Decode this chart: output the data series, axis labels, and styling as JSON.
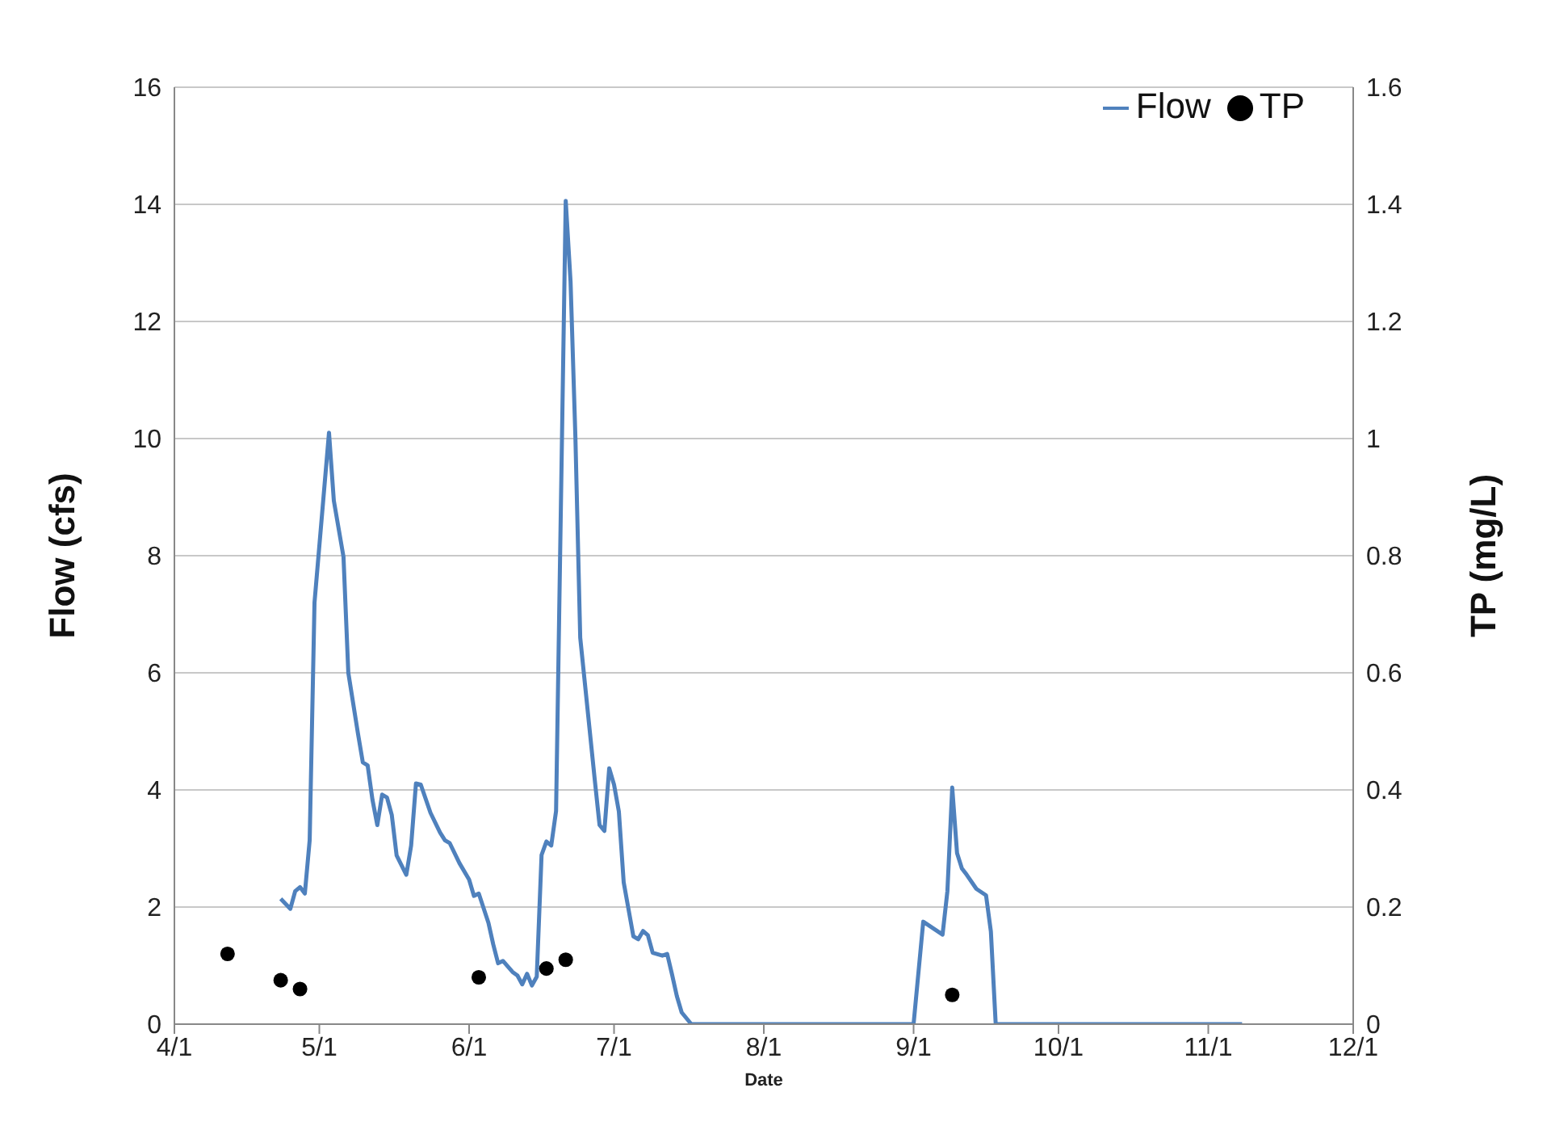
{
  "chart_data": {
    "type": "line",
    "xlabel": "Date",
    "ylabel": "Flow (cfs)",
    "y2label": "TP (mg/L)",
    "xlim": [
      "--04-01",
      "--12-01"
    ],
    "xticks": [
      {
        "value": "--04-01",
        "label": "4/1"
      },
      {
        "value": "--05-01",
        "label": "5/1"
      },
      {
        "value": "--06-01",
        "label": "6/1"
      },
      {
        "value": "--07-01",
        "label": "7/1"
      },
      {
        "value": "--08-01",
        "label": "8/1"
      },
      {
        "value": "--09-01",
        "label": "9/1"
      },
      {
        "value": "--10-01",
        "label": "10/1"
      },
      {
        "value": "--11-01",
        "label": "11/1"
      },
      {
        "value": "--12-01",
        "label": "12/1"
      }
    ],
    "ylim": [
      0,
      16
    ],
    "yticks": [
      0,
      2,
      4,
      6,
      8,
      10,
      12,
      14,
      16
    ],
    "y2lim": [
      0,
      1.6
    ],
    "y2ticks": [
      0,
      0.2,
      0.4,
      0.6,
      0.8,
      1,
      1.2,
      1.4,
      1.6
    ],
    "grid": "y",
    "legend": "top right",
    "series": [
      {
        "name": "Flow",
        "color": "#4f81bd",
        "x": [
          "--04-23",
          "--04-25",
          "--04-26",
          "--04-27",
          "--04-28",
          "--04-29",
          "--04-30",
          "--05-03",
          "--05-04",
          "--05-06",
          "--05-07",
          "--05-09",
          "--05-10",
          "--05-11",
          "--05-12",
          "--05-13",
          "--05-14",
          "--05-15",
          "--05-16",
          "--05-17",
          "--05-19",
          "--05-20",
          "--05-21",
          "--05-22",
          "--05-24",
          "--05-26",
          "--05-27",
          "--05-28",
          "--05-30",
          "--06-01",
          "--06-02",
          "--06-03",
          "--06-05",
          "--06-06",
          "--06-07",
          "--06-08",
          "--06-10",
          "--06-11",
          "--06-12",
          "--06-13",
          "--06-14",
          "--06-15",
          "--06-16",
          "--06-17",
          "--06-18",
          "--06-19",
          "--06-21",
          "--06-22",
          "--06-23",
          "--06-24",
          "--06-27",
          "--06-28",
          "--06-29",
          "--06-30",
          "--07-01",
          "--07-02",
          "--07-03",
          "--07-04",
          "--07-05",
          "--07-06",
          "--07-07",
          "--07-08",
          "--07-09",
          "--07-11",
          "--07-12",
          "--07-13",
          "--07-14",
          "--07-15",
          "--07-17",
          "--08-31",
          "--09-01",
          "--09-03",
          "--09-07",
          "--09-08",
          "--09-09",
          "--09-10",
          "--09-11",
          "--09-12",
          "--09-14",
          "--09-16",
          "--09-17",
          "--09-18",
          "--11-08"
        ],
        "values": [
          2.14,
          1.97,
          2.27,
          2.34,
          2.23,
          3.14,
          7.2,
          10.1,
          8.94,
          7.98,
          6.0,
          4.96,
          4.47,
          4.42,
          3.83,
          3.4,
          3.92,
          3.87,
          3.57,
          2.88,
          2.55,
          3.05,
          4.11,
          4.09,
          3.61,
          3.27,
          3.14,
          3.09,
          2.75,
          2.47,
          2.19,
          2.23,
          1.73,
          1.36,
          1.04,
          1.08,
          0.89,
          0.83,
          0.68,
          0.86,
          0.66,
          0.81,
          2.89,
          3.12,
          3.05,
          3.64,
          14.06,
          12.68,
          10.03,
          6.6,
          4.18,
          3.4,
          3.3,
          4.37,
          4.09,
          3.63,
          2.42,
          1.96,
          1.5,
          1.45,
          1.59,
          1.52,
          1.22,
          1.17,
          1.2,
          0.85,
          0.48,
          0.2,
          0,
          0,
          0,
          1.75,
          1.53,
          2.27,
          4.04,
          2.92,
          2.66,
          2.55,
          2.31,
          2.2,
          1.58,
          0,
          0
        ]
      },
      {
        "name": "TP",
        "type": "scatter",
        "axis": "y2",
        "color": "#000000",
        "x": [
          "--04-12",
          "--04-23",
          "--04-27",
          "--06-03",
          "--06-17",
          "--06-21",
          "--09-09"
        ],
        "values": [
          0.12,
          0.075,
          0.06,
          0.08,
          0.095,
          0.11,
          0.05
        ]
      }
    ]
  }
}
